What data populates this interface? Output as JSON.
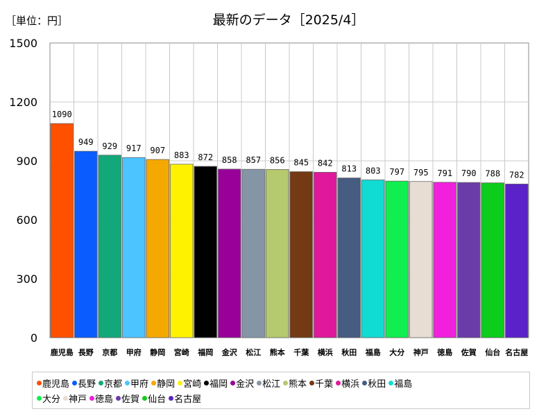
{
  "chart_data": {
    "type": "bar",
    "title": "最新のデータ［2025/4］",
    "unit_label": "［単位：円］",
    "xlabel": "",
    "ylabel": "",
    "ylim": [
      0,
      1500
    ],
    "yticks": [
      0,
      300,
      600,
      900,
      1200,
      1500
    ],
    "grid": true,
    "legend_position": "bottom",
    "categories": [
      "鹿児島",
      "長野",
      "京都",
      "甲府",
      "静岡",
      "宮崎",
      "福岡",
      "金沢",
      "松江",
      "熊本",
      "千葉",
      "横浜",
      "秋田",
      "福島",
      "大分",
      "神戸",
      "徳島",
      "佐賀",
      "仙台",
      "名古屋"
    ],
    "values": [
      1090,
      949,
      929,
      917,
      907,
      883,
      872,
      858,
      857,
      856,
      845,
      842,
      813,
      803,
      797,
      795,
      791,
      790,
      788,
      782
    ],
    "colors": [
      "#ff5000",
      "#0a5cff",
      "#12a87a",
      "#4cc4ff",
      "#f5a800",
      "#fff200",
      "#000000",
      "#990099",
      "#8496a6",
      "#b5c96e",
      "#733a14",
      "#e0189a",
      "#465c80",
      "#10dcd4",
      "#10ee50",
      "#e8ddd2",
      "#f020dc",
      "#6a3ca8",
      "#0ccc1c",
      "#5a22c8"
    ]
  }
}
